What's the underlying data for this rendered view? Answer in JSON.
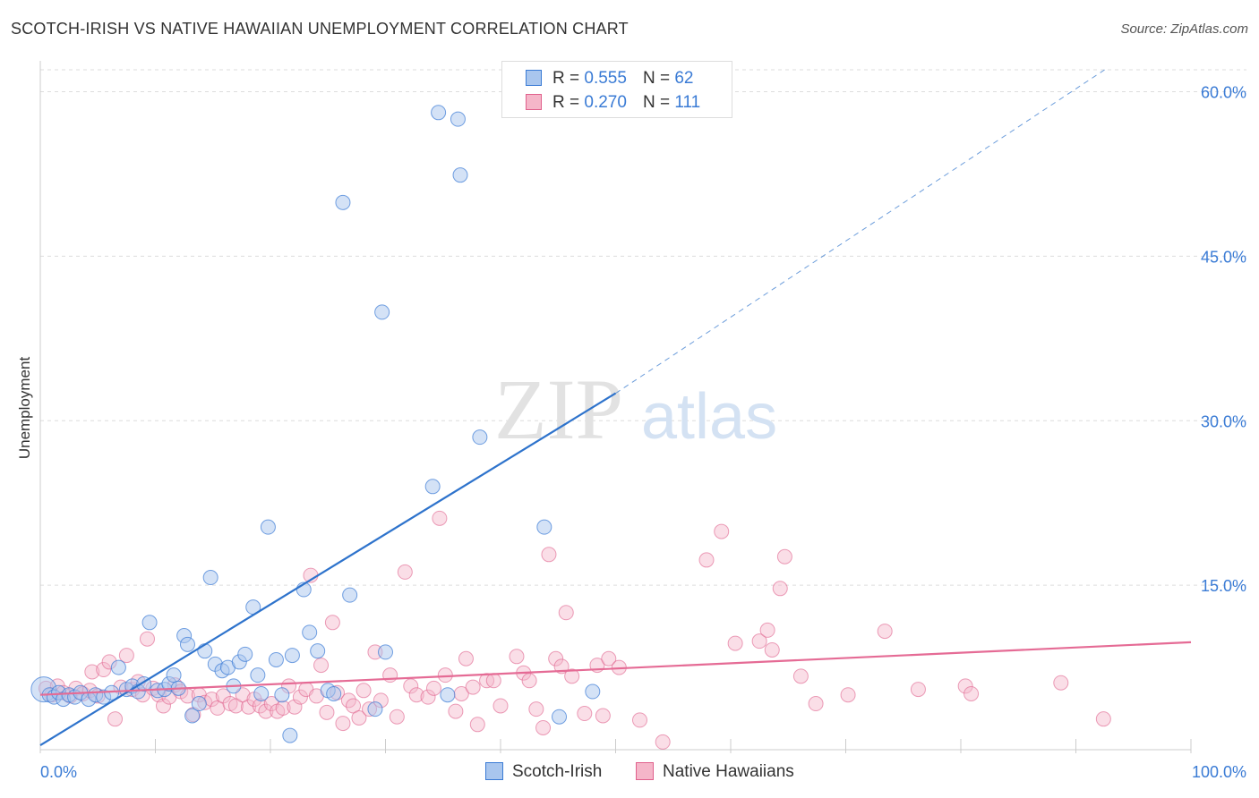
{
  "title": "SCOTCH-IRISH VS NATIVE HAWAIIAN UNEMPLOYMENT CORRELATION CHART",
  "source": "Source: ZipAtlas.com",
  "watermark": {
    "zip": "ZIP",
    "atlas": "atlas"
  },
  "colors": {
    "blue": "#3a7bd5",
    "blue_fill": "#a9c6ee",
    "blue_line": "#2e73cc",
    "pink": "#e0608c",
    "pink_fill": "#f5b6c9",
    "pink_line": "#e56b95",
    "axis_text": "#3a7bd5",
    "grid": "#dddddd"
  },
  "legend": {
    "r_label": "R =",
    "n_label": "N =",
    "series": [
      {
        "name": "Scotch-Irish",
        "r": "0.555",
        "n": "62"
      },
      {
        "name": "Native Hawaiians",
        "r": "0.270",
        "n": "111"
      }
    ]
  },
  "chart_data": {
    "type": "scatter",
    "title": "SCOTCH-IRISH VS NATIVE HAWAIIAN UNEMPLOYMENT CORRELATION CHART",
    "xlabel": "",
    "ylabel": "Unemployment",
    "xlim": [
      0,
      100
    ],
    "ylim": [
      0,
      62
    ],
    "x_tick_labels": [
      "0.0%",
      "100.0%"
    ],
    "y_ticks": [
      15,
      30,
      45,
      60
    ],
    "y_tick_labels": [
      "15.0%",
      "30.0%",
      "45.0%",
      "60.0%"
    ],
    "grid": true,
    "series": [
      {
        "name": "Scotch-Irish",
        "points": [
          {
            "x": 0.3,
            "y": 5.5,
            "big": true
          },
          {
            "x": 0.8,
            "y": 5.0
          },
          {
            "x": 1.2,
            "y": 4.8
          },
          {
            "x": 1.6,
            "y": 5.2
          },
          {
            "x": 2.0,
            "y": 4.6
          },
          {
            "x": 2.5,
            "y": 5.0
          },
          {
            "x": 3.0,
            "y": 4.8
          },
          {
            "x": 3.5,
            "y": 5.2
          },
          {
            "x": 4.2,
            "y": 4.6
          },
          {
            "x": 4.8,
            "y": 5.0
          },
          {
            "x": 5.5,
            "y": 4.8
          },
          {
            "x": 6.2,
            "y": 5.2
          },
          {
            "x": 6.8,
            "y": 7.5
          },
          {
            "x": 7.5,
            "y": 5.5
          },
          {
            "x": 8.0,
            "y": 5.8
          },
          {
            "x": 8.5,
            "y": 5.3
          },
          {
            "x": 9.0,
            "y": 6.0
          },
          {
            "x": 9.5,
            "y": 11.6
          },
          {
            "x": 10.2,
            "y": 5.4
          },
          {
            "x": 10.8,
            "y": 5.5
          },
          {
            "x": 11.2,
            "y": 6.0
          },
          {
            "x": 11.6,
            "y": 6.8
          },
          {
            "x": 12.0,
            "y": 5.6
          },
          {
            "x": 12.5,
            "y": 10.4
          },
          {
            "x": 12.8,
            "y": 9.6
          },
          {
            "x": 13.2,
            "y": 3.1
          },
          {
            "x": 13.8,
            "y": 4.2
          },
          {
            "x": 14.3,
            "y": 9.0
          },
          {
            "x": 14.8,
            "y": 15.7
          },
          {
            "x": 15.2,
            "y": 7.8
          },
          {
            "x": 15.8,
            "y": 7.2
          },
          {
            "x": 16.3,
            "y": 7.5
          },
          {
            "x": 16.8,
            "y": 5.8
          },
          {
            "x": 17.3,
            "y": 8.0
          },
          {
            "x": 17.8,
            "y": 8.7
          },
          {
            "x": 18.5,
            "y": 13.0
          },
          {
            "x": 18.9,
            "y": 6.8
          },
          {
            "x": 19.2,
            "y": 5.1
          },
          {
            "x": 19.8,
            "y": 20.3
          },
          {
            "x": 20.5,
            "y": 8.2
          },
          {
            "x": 21.0,
            "y": 5.0
          },
          {
            "x": 21.7,
            "y": 1.3
          },
          {
            "x": 21.9,
            "y": 8.6
          },
          {
            "x": 22.9,
            "y": 14.6
          },
          {
            "x": 23.4,
            "y": 10.7
          },
          {
            "x": 24.1,
            "y": 9.0
          },
          {
            "x": 25.0,
            "y": 5.4
          },
          {
            "x": 25.5,
            "y": 5.1
          },
          {
            "x": 26.3,
            "y": 49.9
          },
          {
            "x": 26.9,
            "y": 14.1
          },
          {
            "x": 29.1,
            "y": 3.7
          },
          {
            "x": 29.7,
            "y": 39.9
          },
          {
            "x": 30.0,
            "y": 8.9
          },
          {
            "x": 34.1,
            "y": 24.0
          },
          {
            "x": 34.6,
            "y": 58.1
          },
          {
            "x": 35.4,
            "y": 5.0
          },
          {
            "x": 36.3,
            "y": 57.5
          },
          {
            "x": 36.5,
            "y": 52.4
          },
          {
            "x": 38.2,
            "y": 28.5
          },
          {
            "x": 43.8,
            "y": 20.3
          },
          {
            "x": 45.1,
            "y": 3.0
          },
          {
            "x": 48.0,
            "y": 5.3
          }
        ],
        "trend": {
          "x0": 0,
          "y0": 0.4,
          "x1": 50,
          "y1": 32.5,
          "dashed_to_x": 92.5,
          "dashed_to_y": 62
        }
      },
      {
        "name": "Native Hawaiians",
        "points": [
          {
            "x": 0.5,
            "y": 5.6
          },
          {
            "x": 1.0,
            "y": 5.0
          },
          {
            "x": 1.5,
            "y": 5.8
          },
          {
            "x": 2.0,
            "y": 5.2
          },
          {
            "x": 2.6,
            "y": 4.9
          },
          {
            "x": 3.1,
            "y": 5.6
          },
          {
            "x": 3.7,
            "y": 5.1
          },
          {
            "x": 4.3,
            "y": 5.4
          },
          {
            "x": 4.5,
            "y": 7.1
          },
          {
            "x": 5.0,
            "y": 4.9
          },
          {
            "x": 5.5,
            "y": 7.3
          },
          {
            "x": 6.0,
            "y": 8.0
          },
          {
            "x": 6.5,
            "y": 2.8
          },
          {
            "x": 7.0,
            "y": 5.7
          },
          {
            "x": 7.5,
            "y": 8.6
          },
          {
            "x": 8.0,
            "y": 5.5
          },
          {
            "x": 8.5,
            "y": 6.2
          },
          {
            "x": 8.9,
            "y": 5.0
          },
          {
            "x": 9.3,
            "y": 10.1
          },
          {
            "x": 9.8,
            "y": 5.6
          },
          {
            "x": 10.3,
            "y": 5.0
          },
          {
            "x": 10.7,
            "y": 4.0
          },
          {
            "x": 11.2,
            "y": 4.8
          },
          {
            "x": 11.7,
            "y": 5.9
          },
          {
            "x": 12.2,
            "y": 5.3
          },
          {
            "x": 12.8,
            "y": 4.9
          },
          {
            "x": 13.3,
            "y": 3.2
          },
          {
            "x": 13.8,
            "y": 5.0
          },
          {
            "x": 14.3,
            "y": 4.3
          },
          {
            "x": 14.9,
            "y": 4.6
          },
          {
            "x": 15.4,
            "y": 3.8
          },
          {
            "x": 15.9,
            "y": 4.9
          },
          {
            "x": 16.5,
            "y": 4.2
          },
          {
            "x": 17.0,
            "y": 4.0
          },
          {
            "x": 17.6,
            "y": 5.0
          },
          {
            "x": 18.1,
            "y": 3.9
          },
          {
            "x": 18.6,
            "y": 4.6
          },
          {
            "x": 19.1,
            "y": 4.0
          },
          {
            "x": 19.6,
            "y": 3.5
          },
          {
            "x": 20.1,
            "y": 4.2
          },
          {
            "x": 20.6,
            "y": 3.5
          },
          {
            "x": 21.1,
            "y": 3.8
          },
          {
            "x": 21.6,
            "y": 5.8
          },
          {
            "x": 22.1,
            "y": 3.9
          },
          {
            "x": 22.6,
            "y": 4.8
          },
          {
            "x": 23.1,
            "y": 5.5
          },
          {
            "x": 23.5,
            "y": 15.9
          },
          {
            "x": 24.0,
            "y": 4.9
          },
          {
            "x": 24.4,
            "y": 7.7
          },
          {
            "x": 24.9,
            "y": 3.4
          },
          {
            "x": 25.4,
            "y": 11.6
          },
          {
            "x": 25.8,
            "y": 5.2
          },
          {
            "x": 26.3,
            "y": 2.4
          },
          {
            "x": 26.8,
            "y": 4.5
          },
          {
            "x": 27.2,
            "y": 4.0
          },
          {
            "x": 27.7,
            "y": 2.9
          },
          {
            "x": 28.1,
            "y": 5.4
          },
          {
            "x": 28.6,
            "y": 3.7
          },
          {
            "x": 29.1,
            "y": 8.9
          },
          {
            "x": 29.6,
            "y": 4.5
          },
          {
            "x": 30.4,
            "y": 6.8
          },
          {
            "x": 31.0,
            "y": 3.0
          },
          {
            "x": 31.7,
            "y": 16.2
          },
          {
            "x": 32.2,
            "y": 5.8
          },
          {
            "x": 32.7,
            "y": 5.0
          },
          {
            "x": 33.7,
            "y": 4.8
          },
          {
            "x": 34.2,
            "y": 5.6
          },
          {
            "x": 34.7,
            "y": 21.1
          },
          {
            "x": 35.2,
            "y": 6.8
          },
          {
            "x": 36.1,
            "y": 3.5
          },
          {
            "x": 36.6,
            "y": 5.1
          },
          {
            "x": 37.0,
            "y": 8.3
          },
          {
            "x": 37.6,
            "y": 5.7
          },
          {
            "x": 38.0,
            "y": 2.3
          },
          {
            "x": 38.8,
            "y": 6.3
          },
          {
            "x": 39.4,
            "y": 6.3
          },
          {
            "x": 40.0,
            "y": 4.0
          },
          {
            "x": 41.4,
            "y": 8.5
          },
          {
            "x": 42.0,
            "y": 7.0
          },
          {
            "x": 42.5,
            "y": 6.3
          },
          {
            "x": 43.1,
            "y": 3.7
          },
          {
            "x": 43.7,
            "y": 2.0
          },
          {
            "x": 44.2,
            "y": 17.8
          },
          {
            "x": 44.8,
            "y": 8.3
          },
          {
            "x": 45.3,
            "y": 7.6
          },
          {
            "x": 45.7,
            "y": 12.5
          },
          {
            "x": 46.2,
            "y": 6.7
          },
          {
            "x": 47.3,
            "y": 3.3
          },
          {
            "x": 48.4,
            "y": 7.7
          },
          {
            "x": 48.9,
            "y": 3.1
          },
          {
            "x": 49.4,
            "y": 8.3
          },
          {
            "x": 50.3,
            "y": 7.5
          },
          {
            "x": 52.1,
            "y": 2.7
          },
          {
            "x": 54.1,
            "y": 0.7
          },
          {
            "x": 57.9,
            "y": 17.3
          },
          {
            "x": 59.2,
            "y": 19.9
          },
          {
            "x": 60.4,
            "y": 9.7
          },
          {
            "x": 62.5,
            "y": 9.9
          },
          {
            "x": 63.2,
            "y": 10.9
          },
          {
            "x": 63.6,
            "y": 9.1
          },
          {
            "x": 64.3,
            "y": 14.7
          },
          {
            "x": 64.7,
            "y": 17.6
          },
          {
            "x": 66.1,
            "y": 6.7
          },
          {
            "x": 67.4,
            "y": 4.2
          },
          {
            "x": 70.2,
            "y": 5.0
          },
          {
            "x": 73.4,
            "y": 10.8
          },
          {
            "x": 76.3,
            "y": 5.5
          },
          {
            "x": 80.4,
            "y": 5.8
          },
          {
            "x": 80.9,
            "y": 5.1
          },
          {
            "x": 88.7,
            "y": 6.1
          },
          {
            "x": 92.4,
            "y": 2.8
          }
        ],
        "trend": {
          "x0": 0,
          "y0": 5.0,
          "x1": 100,
          "y1": 9.8
        }
      }
    ]
  }
}
